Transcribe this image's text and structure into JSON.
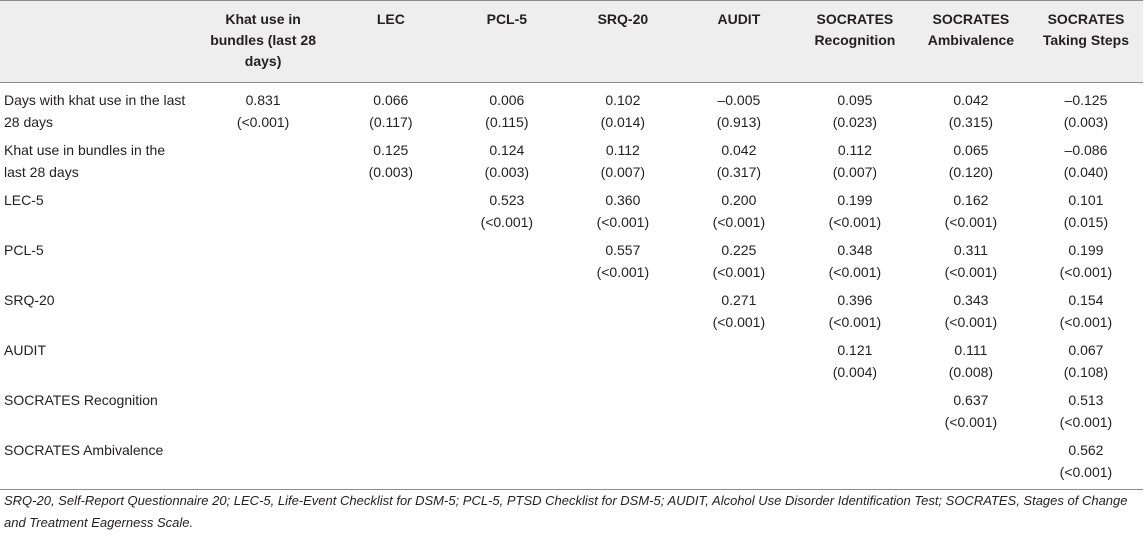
{
  "columns": [
    "",
    "Khat use in bundles (last 28 days)",
    "LEC",
    "PCL-5",
    "SRQ-20",
    "AUDIT",
    "SOCRATES Recognition",
    "SOCRATES Ambivalence",
    "SOCRATES Taking Steps"
  ],
  "rows": [
    {
      "label": "Days with khat use in the last 28 days",
      "cells": [
        {
          "v": "0.831",
          "p": "(<0.001)"
        },
        {
          "v": "0.066",
          "p": "(0.117)"
        },
        {
          "v": "0.006",
          "p": "(0.115)"
        },
        {
          "v": "0.102",
          "p": "(0.014)"
        },
        {
          "v": "–0.005",
          "p": "(0.913)"
        },
        {
          "v": "0.095",
          "p": "(0.023)"
        },
        {
          "v": "0.042",
          "p": "(0.315)"
        },
        {
          "v": "–0.125",
          "p": "(0.003)"
        }
      ]
    },
    {
      "label": "Khat use in bundles in the last 28 days",
      "cells": [
        {
          "v": "",
          "p": ""
        },
        {
          "v": "0.125",
          "p": "(0.003)"
        },
        {
          "v": "0.124",
          "p": "(0.003)"
        },
        {
          "v": "0.112",
          "p": "(0.007)"
        },
        {
          "v": "0.042",
          "p": "(0.317)"
        },
        {
          "v": "0.112",
          "p": "(0.007)"
        },
        {
          "v": "0.065",
          "p": "(0.120)"
        },
        {
          "v": "–0.086",
          "p": "(0.040)"
        }
      ]
    },
    {
      "label": "LEC-5",
      "cells": [
        {
          "v": "",
          "p": ""
        },
        {
          "v": "",
          "p": ""
        },
        {
          "v": "0.523",
          "p": "(<0.001)"
        },
        {
          "v": "0.360",
          "p": "(<0.001)"
        },
        {
          "v": "0.200",
          "p": "(<0.001)"
        },
        {
          "v": "0.199",
          "p": "(<0.001)"
        },
        {
          "v": "0.162",
          "p": "(<0.001)"
        },
        {
          "v": "0.101",
          "p": "(0.015)"
        }
      ]
    },
    {
      "label": "PCL-5",
      "cells": [
        {
          "v": "",
          "p": ""
        },
        {
          "v": "",
          "p": ""
        },
        {
          "v": "",
          "p": ""
        },
        {
          "v": "0.557",
          "p": "(<0.001)"
        },
        {
          "v": "0.225",
          "p": "(<0.001)"
        },
        {
          "v": "0.348",
          "p": "(<0.001)"
        },
        {
          "v": "0.311",
          "p": "(<0.001)"
        },
        {
          "v": "0.199",
          "p": "(<0.001)"
        }
      ]
    },
    {
      "label": "SRQ-20",
      "cells": [
        {
          "v": "",
          "p": ""
        },
        {
          "v": "",
          "p": ""
        },
        {
          "v": "",
          "p": ""
        },
        {
          "v": "",
          "p": ""
        },
        {
          "v": "0.271",
          "p": "(<0.001)"
        },
        {
          "v": "0.396",
          "p": "(<0.001)"
        },
        {
          "v": "0.343",
          "p": "(<0.001)"
        },
        {
          "v": "0.154",
          "p": "(<0.001)"
        }
      ]
    },
    {
      "label": "AUDIT",
      "cells": [
        {
          "v": "",
          "p": ""
        },
        {
          "v": "",
          "p": ""
        },
        {
          "v": "",
          "p": ""
        },
        {
          "v": "",
          "p": ""
        },
        {
          "v": "",
          "p": ""
        },
        {
          "v": "0.121",
          "p": "(0.004)"
        },
        {
          "v": "0.111",
          "p": "(0.008)"
        },
        {
          "v": "0.067",
          "p": "(0.108)"
        }
      ]
    },
    {
      "label": "SOCRATES Recognition",
      "cells": [
        {
          "v": "",
          "p": ""
        },
        {
          "v": "",
          "p": ""
        },
        {
          "v": "",
          "p": ""
        },
        {
          "v": "",
          "p": ""
        },
        {
          "v": "",
          "p": ""
        },
        {
          "v": "",
          "p": ""
        },
        {
          "v": "0.637",
          "p": "(<0.001)"
        },
        {
          "v": "0.513",
          "p": "(<0.001)"
        }
      ]
    },
    {
      "label": "SOCRATES Ambivalence",
      "cells": [
        {
          "v": "",
          "p": ""
        },
        {
          "v": "",
          "p": ""
        },
        {
          "v": "",
          "p": ""
        },
        {
          "v": "",
          "p": ""
        },
        {
          "v": "",
          "p": ""
        },
        {
          "v": "",
          "p": ""
        },
        {
          "v": "",
          "p": ""
        },
        {
          "v": "0.562",
          "p": "(<0.001)"
        }
      ]
    }
  ],
  "footnote": "SRQ-20, Self-Report Questionnaire 20; LEC-5, Life-Event Checklist for DSM-5; PCL-5, PTSD Checklist for DSM-5; AUDIT, Alcohol Use Disorder Identification Test; SOCRATES, Stages of Change and Treatment Eagerness Scale."
}
